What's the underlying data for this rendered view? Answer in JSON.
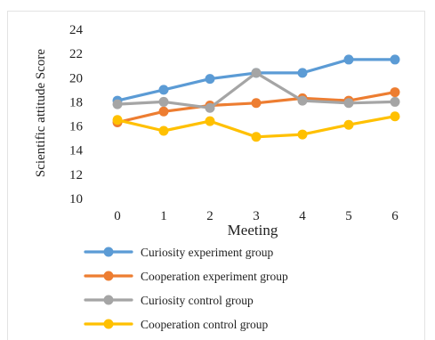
{
  "chart_data": {
    "type": "line",
    "title": "",
    "xlabel": "Meeting",
    "ylabel": "Scientific attitude Score",
    "categories": [
      "0",
      "1",
      "2",
      "3",
      "4",
      "5",
      "6"
    ],
    "yticks": [
      "10",
      "12",
      "14",
      "16",
      "18",
      "20",
      "22",
      "24"
    ],
    "ylim": [
      10,
      24
    ],
    "grid": false,
    "legend_position": "bottom",
    "series": [
      {
        "name": "Curiosity experiment group",
        "color": "#5b9bd5",
        "values": [
          18.1,
          19.0,
          19.9,
          20.4,
          20.4,
          21.5,
          21.5
        ]
      },
      {
        "name": "Cooperation experiment group",
        "color": "#ed7d31",
        "values": [
          16.3,
          17.2,
          17.7,
          17.9,
          18.3,
          18.1,
          18.8
        ]
      },
      {
        "name": "Curiosity control group",
        "color": "#a5a5a5",
        "values": [
          17.8,
          18.0,
          17.5,
          20.4,
          18.1,
          17.9,
          18.0
        ]
      },
      {
        "name": "Cooperation control group",
        "color": "#ffc000",
        "values": [
          16.5,
          15.6,
          16.4,
          15.1,
          15.3,
          16.1,
          16.8
        ]
      }
    ]
  }
}
